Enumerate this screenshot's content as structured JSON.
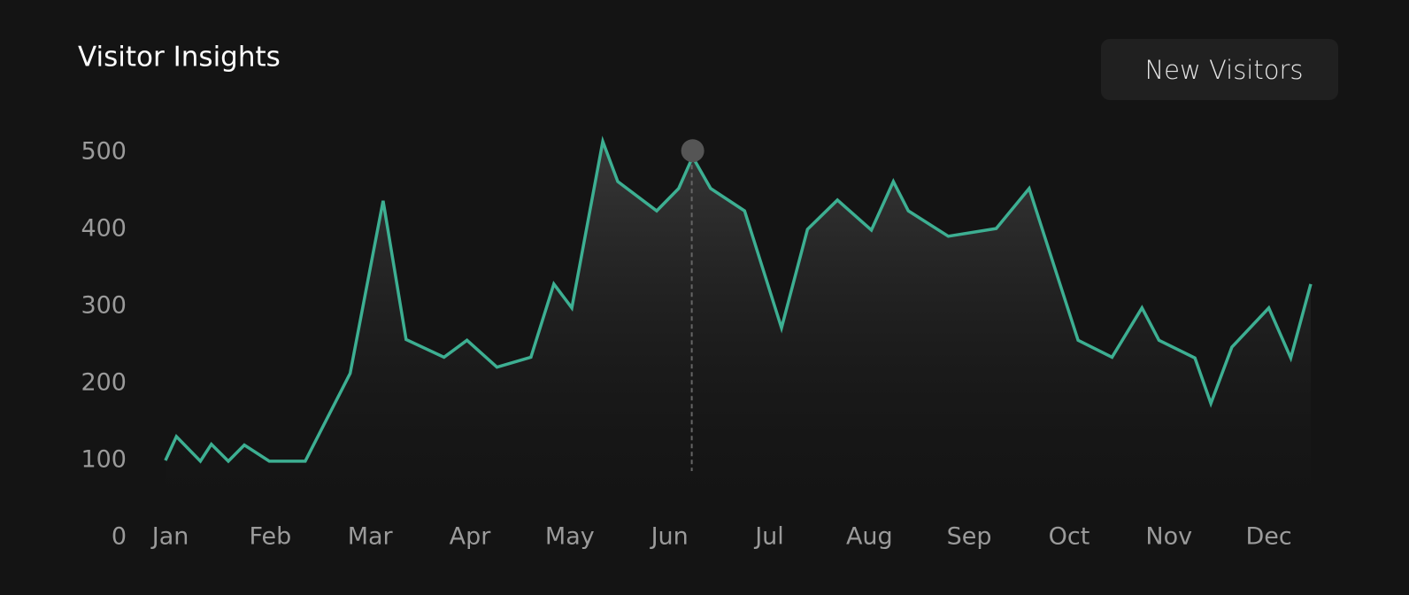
{
  "chart_data": {
    "type": "line",
    "title": "Visitor Insights",
    "x": [
      -0.05,
      0.06,
      0.3,
      0.41,
      0.58,
      0.74,
      0.99,
      1.35,
      1.8,
      2.13,
      2.36,
      2.74,
      2.97,
      3.27,
      3.61,
      3.84,
      4.02,
      4.33,
      4.48,
      4.87,
      5.09,
      5.23,
      5.41,
      5.75,
      6.12,
      6.38,
      6.68,
      7.02,
      7.24,
      7.39,
      7.79,
      8.27,
      8.6,
      9.09,
      9.43,
      9.73,
      9.9,
      10.26,
      10.42,
      10.63,
      11.0,
      11.22,
      11.42
    ],
    "series": [
      {
        "name": "New Visitors",
        "color": "#3daf92",
        "values": [
          100,
          131,
          99,
          121,
          99,
          120,
          99,
          99,
          213,
          437,
          257,
          234,
          256,
          221,
          234,
          329,
          298,
          514,
          462,
          424,
          453,
          494,
          453,
          424,
          272,
          400,
          438,
          399,
          462,
          424,
          391,
          401,
          453,
          256,
          234,
          298,
          256,
          233,
          174,
          247,
          298,
          233,
          329
        ]
      }
    ],
    "xlim": [
      -0.2,
      11.5
    ],
    "xticks": [
      {
        "value": 0,
        "label": "Jan"
      },
      {
        "value": 1,
        "label": "Feb"
      },
      {
        "value": 2,
        "label": "Mar"
      },
      {
        "value": 3,
        "label": "Apr"
      },
      {
        "value": 4,
        "label": "May"
      },
      {
        "value": 5,
        "label": "Jun"
      },
      {
        "value": 6,
        "label": "Jul"
      },
      {
        "value": 7,
        "label": "Aug"
      },
      {
        "value": 8,
        "label": "Sep"
      },
      {
        "value": 9,
        "label": "Oct"
      },
      {
        "value": 10,
        "label": "Nov"
      },
      {
        "value": 11,
        "label": "Dec"
      }
    ],
    "ylim": [
      0,
      550
    ],
    "yticks": [
      0,
      100,
      200,
      300,
      400,
      500
    ],
    "grid": false
  }
}
